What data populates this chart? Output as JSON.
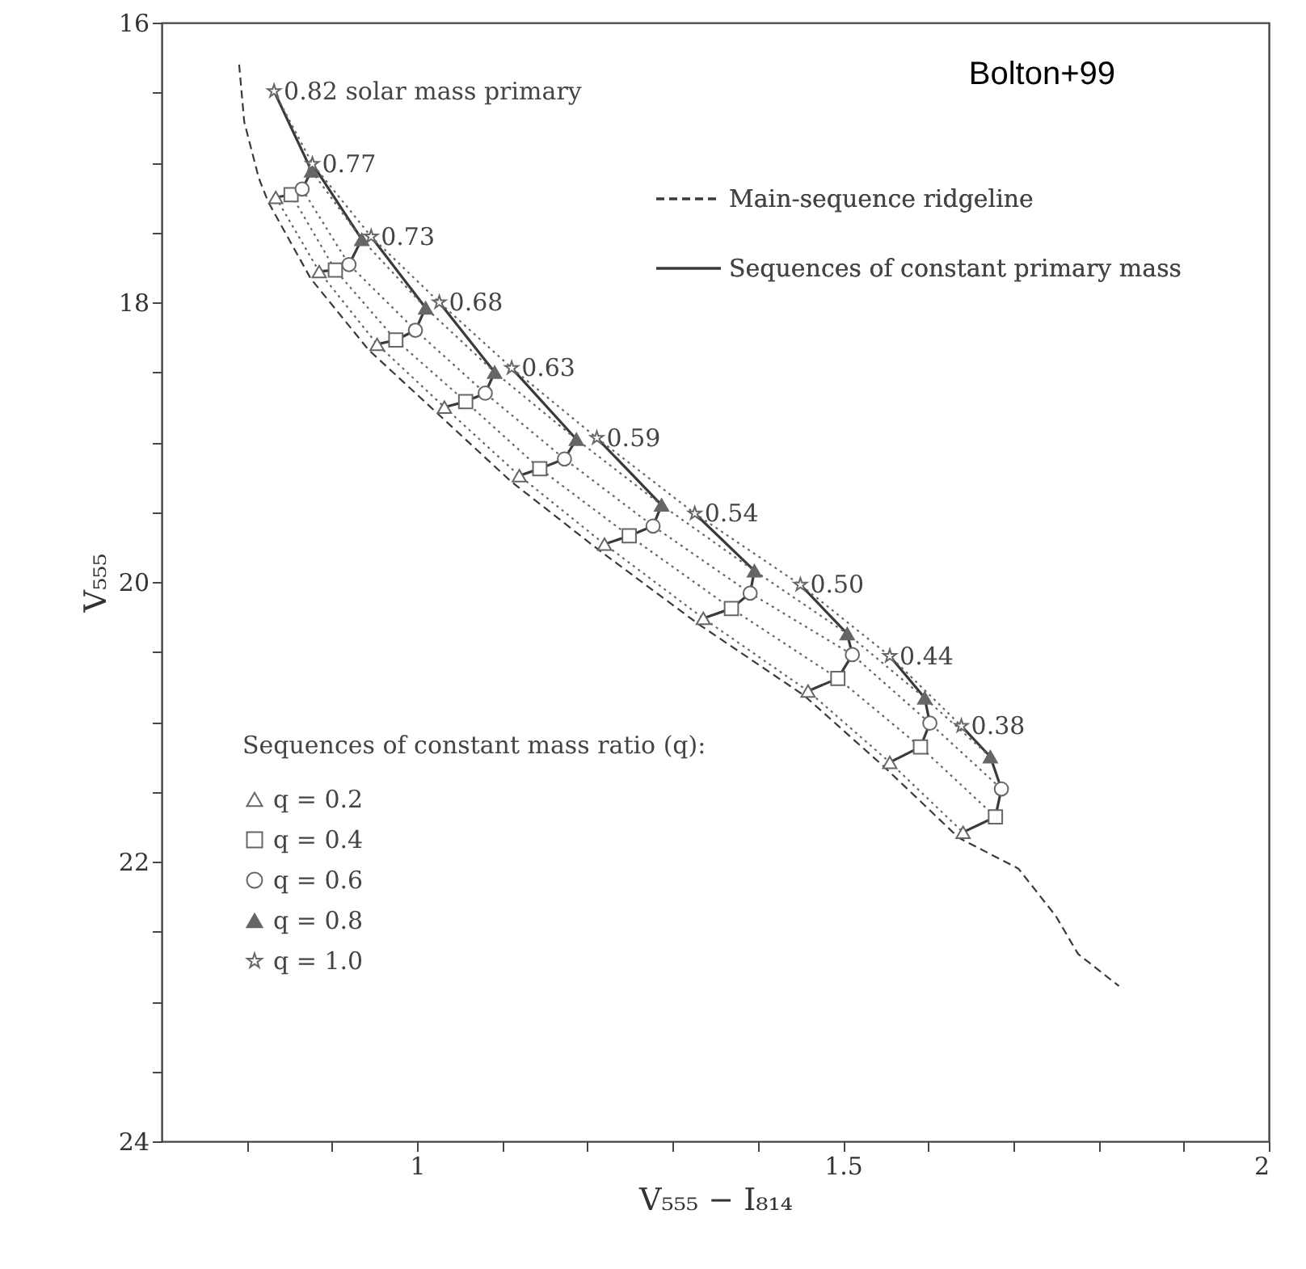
{
  "chart_data": {
    "type": "line",
    "xlabel": "V₅₅₅ − I₈₁₄",
    "ylabel": "V₅₅₅",
    "xlim": [
      0.7,
      2.0
    ],
    "ylim": [
      24,
      16
    ],
    "xticks": [
      {
        "value": 0.8,
        "label": null
      },
      {
        "value": 0.9,
        "label": null
      },
      1,
      {
        "value": 1.1,
        "label": null
      },
      {
        "value": 1.2,
        "label": null
      },
      {
        "value": 1.3,
        "label": null
      },
      {
        "value": 1.4,
        "label": null
      },
      1.5,
      {
        "value": 1.6,
        "label": null
      },
      {
        "value": 1.7,
        "label": null
      },
      {
        "value": 1.8,
        "label": null
      },
      {
        "value": 1.9,
        "label": null
      },
      2
    ],
    "yticks": [
      16,
      {
        "value": 16.5,
        "label": null
      },
      {
        "value": 17,
        "label": null
      },
      {
        "value": 17.5,
        "label": null
      },
      18,
      {
        "value": 18.5,
        "label": null
      },
      {
        "value": 19,
        "label": null
      },
      {
        "value": 19.5,
        "label": null
      },
      20,
      {
        "value": 20.5,
        "label": null
      },
      {
        "value": 21,
        "label": null
      },
      {
        "value": 21.5,
        "label": null
      },
      22,
      {
        "value": 22.5,
        "label": null
      },
      {
        "value": 23,
        "label": null
      },
      {
        "value": 23.5,
        "label": null
      },
      24
    ],
    "legend": "top right",
    "legend_title": "Sequences of constant mass ratio (q):",
    "annotations": [
      "Bolton+99",
      {
        "text": "0.82 solar mass primary",
        "x": 0.832,
        "y": 16.49
      },
      {
        "text": "0.77",
        "x": 0.877,
        "y": 17.01
      },
      {
        "text": "0.73",
        "x": 0.946,
        "y": 17.53
      },
      {
        "text": "0.68",
        "x": 1.026,
        "y": 18.0
      },
      {
        "text": "0.63",
        "x": 1.111,
        "y": 18.47
      },
      {
        "text": "0.59",
        "x": 1.211,
        "y": 18.97
      },
      {
        "text": "0.54",
        "x": 1.326,
        "y": 19.51
      },
      {
        "text": "0.50",
        "x": 1.45,
        "y": 20.02
      },
      {
        "text": "0.44",
        "x": 1.555,
        "y": 20.53
      },
      {
        "text": "0.38",
        "x": 1.639,
        "y": 21.03
      }
    ],
    "series": [
      {
        "name": "Main-sequence ridgeline",
        "type": "line",
        "line_style": "dashed",
        "color": "#3a3a3a",
        "x": [
          0.791,
          0.797,
          0.814,
          0.825,
          0.875,
          0.943,
          1.023,
          1.11,
          1.213,
          1.33,
          1.454,
          1.548,
          1.636,
          1.706,
          1.75,
          1.776,
          1.824
        ],
        "values": [
          16.3,
          16.71,
          17.11,
          17.28,
          17.83,
          18.34,
          18.79,
          19.28,
          19.77,
          20.3,
          20.81,
          21.32,
          21.83,
          22.05,
          22.39,
          22.66,
          22.89
        ]
      },
      {
        "name": "Sequences of constant primary mass",
        "type": "line",
        "line_style": "solid",
        "color": "#3a3a3a",
        "x": [
          0.832,
          0.876,
          0.865,
          0.852,
          0.834,
          null,
          0.877,
          0.935,
          0.92,
          0.904,
          0.885,
          null,
          0.946,
          1.01,
          0.998,
          0.975,
          0.953,
          null,
          1.026,
          1.091,
          1.08,
          1.057,
          1.032,
          null,
          1.111,
          1.187,
          1.173,
          1.144,
          1.12,
          null,
          1.211,
          1.287,
          1.277,
          1.249,
          1.22,
          null,
          1.326,
          1.396,
          1.391,
          1.369,
          1.336,
          null,
          1.45,
          1.505,
          1.511,
          1.494,
          1.459,
          null,
          1.555,
          1.596,
          1.602,
          1.591,
          1.555,
          null,
          1.639,
          1.673,
          1.686,
          1.679,
          1.641
        ],
        "values": [
          16.49,
          17.06,
          17.19,
          17.23,
          17.25,
          null,
          17.01,
          17.55,
          17.73,
          17.77,
          17.78,
          null,
          17.53,
          18.04,
          18.2,
          18.27,
          18.3,
          null,
          18.0,
          18.5,
          18.65,
          18.71,
          18.75,
          null,
          18.47,
          18.98,
          19.12,
          19.19,
          19.24,
          null,
          18.97,
          19.45,
          19.6,
          19.67,
          19.73,
          null,
          19.51,
          19.92,
          20.08,
          20.19,
          20.26,
          null,
          20.02,
          20.37,
          20.52,
          20.69,
          20.78,
          null,
          20.53,
          20.83,
          21.01,
          21.18,
          21.29,
          null,
          21.03,
          21.25,
          21.48,
          21.68,
          21.79
        ]
      },
      {
        "name": "q = 0.2",
        "type": "line",
        "line_style": "dotted",
        "marker": "triangle",
        "color": "#666666",
        "x": [
          0.834,
          0.885,
          0.953,
          1.032,
          1.12,
          1.22,
          1.336,
          1.459,
          1.555,
          1.641
        ],
        "values": [
          17.25,
          17.78,
          18.3,
          18.75,
          19.24,
          19.73,
          20.26,
          20.78,
          21.29,
          21.79
        ]
      },
      {
        "name": "q = 0.4",
        "type": "line",
        "line_style": "dotted",
        "marker": "square",
        "color": "#666666",
        "x": [
          0.852,
          0.904,
          0.975,
          1.057,
          1.144,
          1.249,
          1.369,
          1.494,
          1.591,
          1.679
        ],
        "values": [
          17.23,
          17.77,
          18.27,
          18.71,
          19.19,
          19.67,
          20.19,
          20.69,
          21.18,
          21.68
        ]
      },
      {
        "name": "q = 0.6",
        "type": "line",
        "line_style": "dotted",
        "marker": "circle",
        "color": "#666666",
        "x": [
          0.865,
          0.92,
          0.998,
          1.08,
          1.173,
          1.277,
          1.391,
          1.511,
          1.602,
          1.686
        ],
        "values": [
          17.19,
          17.73,
          18.2,
          18.65,
          19.12,
          19.6,
          20.08,
          20.52,
          21.01,
          21.48
        ]
      },
      {
        "name": "q = 0.8",
        "type": "line",
        "line_style": "dotted",
        "marker": "triangle",
        "color": "#666666",
        "x": [
          0.876,
          0.935,
          1.01,
          1.091,
          1.187,
          1.287,
          1.396,
          1.505,
          1.596,
          1.673
        ],
        "values": [
          17.06,
          17.55,
          18.04,
          18.5,
          18.98,
          19.45,
          19.92,
          20.37,
          20.83,
          21.25
        ]
      },
      {
        "name": "q = 1.0",
        "type": "line",
        "line_style": "dotted",
        "marker": "star",
        "color": "#666666",
        "x": [
          0.832,
          0.877,
          0.946,
          1.026,
          1.111,
          1.211,
          1.326,
          1.45,
          1.555,
          1.639
        ],
        "values": [
          16.49,
          17.01,
          17.53,
          18.0,
          18.47,
          18.97,
          19.51,
          20.02,
          20.53,
          21.03
        ]
      }
    ]
  }
}
